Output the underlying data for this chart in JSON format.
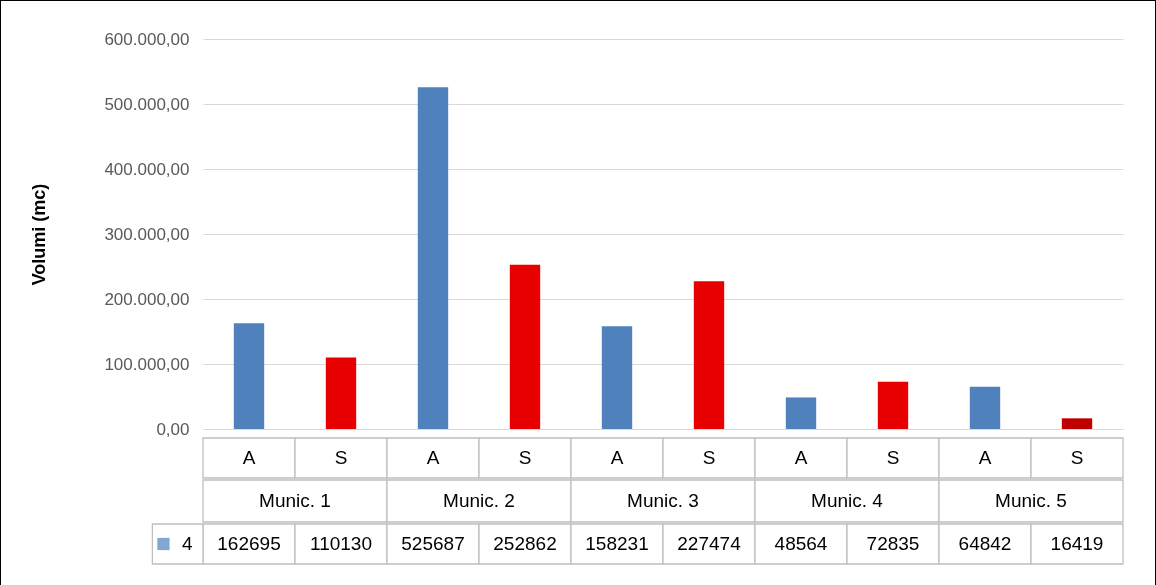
{
  "chart_data": {
    "type": "bar",
    "ylabel": "Volumi (mc)",
    "categories": [
      "A",
      "S",
      "A",
      "S",
      "A",
      "S",
      "A",
      "S",
      "A",
      "S"
    ],
    "annotations": [
      "Munic. 1",
      "Munic. 2",
      "Munic. 3",
      "Munic. 4",
      "Munic. 5"
    ],
    "series": [
      {
        "name": "4",
        "color": "#4f81bd",
        "colors": [
          "#4f81bd",
          "#e60000",
          "#4f81bd",
          "#e60000",
          "#4f81bd",
          "#e60000",
          "#4f81bd",
          "#e60000",
          "#4f81bd",
          "#c00000"
        ],
        "values": [
          162695,
          110130,
          525687,
          252862,
          158231,
          227474,
          48564,
          72835,
          64842,
          16419
        ]
      }
    ],
    "ylim": [
      0,
      600000
    ],
    "yticks": [
      {
        "value": 0,
        "label": "0,00"
      },
      {
        "value": 100000,
        "label": "100.000,00"
      },
      {
        "value": 200000,
        "label": "200.000,00"
      },
      {
        "value": 300000,
        "label": "300.000,00"
      },
      {
        "value": 400000,
        "label": "400.000,00"
      },
      {
        "value": 500000,
        "label": "500.000,00"
      },
      {
        "value": 600000,
        "label": "600.000,00"
      }
    ],
    "grid": "y",
    "legend": "bottom",
    "data_labels": true
  }
}
